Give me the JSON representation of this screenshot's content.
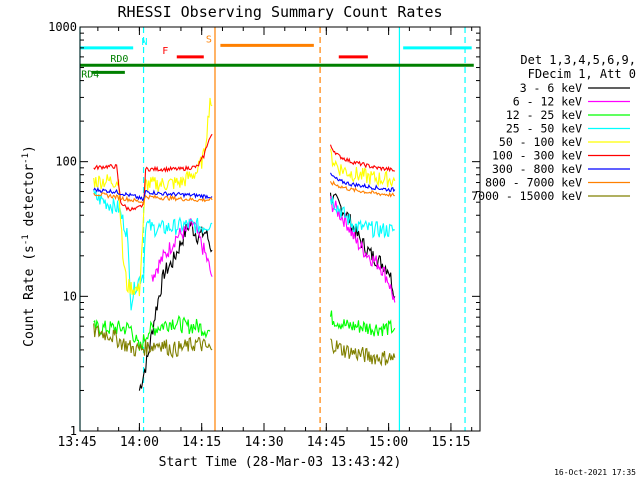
{
  "chart_data": {
    "type": "line",
    "title": "RHESSI Observing Summary Count Rates",
    "xlabel": "Start Time (28-Mar-03 13:43:42)",
    "ylabel": "Count Rate (s⁻¹ detector⁻¹)",
    "ylabel_base": "Count Rate (s",
    "ylabel_sup1": "-1",
    "ylabel_mid": " detector",
    "ylabel_sup2": "-1",
    "ylabel_end": ")",
    "y_scale": "log",
    "ylim": [
      1,
      1000
    ],
    "y_ticks": [
      {
        "value": 1,
        "label": "1"
      },
      {
        "value": 10,
        "label": "10"
      },
      {
        "value": 100,
        "label": "100"
      },
      {
        "value": 1000,
        "label": "1000"
      }
    ],
    "xlim_minutes": [
      825.7,
      922
    ],
    "x_ticks": [
      {
        "minute": 825,
        "label": "13:45"
      },
      {
        "minute": 840,
        "label": "14:00"
      },
      {
        "minute": 855,
        "label": "14:15"
      },
      {
        "minute": 870,
        "label": "14:30"
      },
      {
        "minute": 885,
        "label": "14:45"
      },
      {
        "minute": 900,
        "label": "15:00"
      },
      {
        "minute": 915,
        "label": "15:15"
      }
    ],
    "legend_title_1": "Det 1,3,4,5,6,9,",
    "legend_title_2": "FDecim 1, Att 0",
    "legend_placement": "right",
    "series": [
      {
        "name": "3 - 6 keV",
        "color": "#000000",
        "x": [
          840,
          842,
          844,
          846,
          848,
          850,
          852,
          854,
          856,
          857.5,
          886,
          888,
          890,
          892,
          894,
          896,
          898,
          900,
          901,
          901.5
        ],
        "y": [
          2,
          3.5,
          8,
          15,
          18,
          25,
          35,
          28,
          30,
          22,
          55,
          48,
          40,
          30,
          24,
          20,
          18,
          16,
          12,
          10
        ]
      },
      {
        "name": "6 - 12 keV",
        "color": "#ff00ff",
        "x": [
          843,
          845,
          847,
          849,
          851,
          853,
          855,
          856,
          857.5,
          886,
          888,
          890,
          892,
          894,
          896,
          898,
          900,
          901.5
        ],
        "y": [
          14,
          18,
          22,
          28,
          30,
          35,
          24,
          20,
          14,
          50,
          42,
          35,
          26,
          22,
          19,
          17,
          13,
          9
        ]
      },
      {
        "name": "12 - 25 keV",
        "color": "#00ff00",
        "x": [
          829,
          835,
          838,
          840,
          842,
          845,
          848,
          851,
          854,
          857,
          886,
          888,
          890,
          893,
          896,
          899,
          901.5
        ],
        "y": [
          5.8,
          5.8,
          5.8,
          4,
          5.5,
          6,
          6.5,
          6,
          6,
          5.5,
          7,
          6.5,
          6,
          6,
          5.8,
          5.8,
          5.8
        ]
      },
      {
        "name": "25 - 50 keV",
        "color": "#00ffff",
        "x": [
          829,
          831,
          833,
          835,
          837,
          838,
          839,
          841,
          841.5,
          843,
          846,
          849,
          852,
          855,
          857.5,
          886,
          888,
          890,
          892,
          895,
          898,
          901.5
        ],
        "y": [
          55,
          52,
          48,
          45,
          30,
          9,
          12,
          15,
          35,
          32,
          32,
          33,
          34,
          33,
          35,
          55,
          45,
          38,
          33,
          32,
          31,
          31
        ]
      },
      {
        "name": "50 - 100 keV",
        "color": "#ffff00",
        "x": [
          829,
          832,
          835,
          836,
          837,
          840,
          841.5,
          845,
          850,
          854,
          855.5,
          856.5,
          857,
          857.5,
          886,
          888,
          891,
          894,
          897,
          900,
          901.5
        ],
        "y": [
          72,
          72,
          72,
          20,
          12,
          11,
          68,
          68,
          70,
          85,
          110,
          200,
          300,
          260,
          110,
          90,
          82,
          78,
          75,
          74,
          72
        ]
      },
      {
        "name": "100 - 300 keV",
        "color": "#ff0000",
        "x": [
          829,
          832,
          834.5,
          835.5,
          837,
          839,
          841,
          841.5,
          845,
          850,
          854,
          855.5,
          856.5,
          857.5,
          886,
          888,
          891,
          894,
          897,
          900,
          901.5
        ],
        "y": [
          90,
          92,
          92,
          50,
          45,
          44,
          48,
          88,
          88,
          88,
          92,
          110,
          140,
          160,
          130,
          110,
          100,
          95,
          90,
          88,
          85
        ]
      },
      {
        "name": "300 - 800 keV",
        "color": "#0000ff",
        "x": [
          829,
          834,
          836,
          839,
          841,
          841.5,
          845,
          850,
          854,
          857.5,
          886,
          888,
          891,
          894,
          897,
          900,
          901.5
        ],
        "y": [
          62,
          60,
          58,
          55,
          52,
          60,
          58,
          57,
          56,
          55,
          80,
          72,
          68,
          66,
          64,
          62,
          62
        ]
      },
      {
        "name": "800 - 7000 keV",
        "color": "#ff8000",
        "x": [
          829,
          834,
          838,
          841,
          841.5,
          845,
          850,
          854,
          857.5,
          886,
          888,
          891,
          894,
          897,
          900,
          901.5
        ],
        "y": [
          58,
          55,
          52,
          50,
          55,
          54,
          53,
          52,
          52,
          70,
          66,
          62,
          60,
          58,
          57,
          56
        ]
      },
      {
        "name": "7000 - 15000 keV",
        "color": "#808000",
        "x": [
          829,
          833,
          836,
          839,
          842,
          845,
          848,
          851,
          854,
          857.5,
          886,
          889,
          892,
          895,
          898,
          901.5
        ],
        "y": [
          5.5,
          5.2,
          4.5,
          4,
          4.2,
          4.5,
          4,
          4.2,
          4.5,
          4,
          4.5,
          4,
          3.8,
          3.6,
          3.5,
          3.5
        ]
      }
    ],
    "flag_bars": [
      {
        "label": "N",
        "color": "#00ffff",
        "value": 700,
        "segments": [
          [
            825.7,
            838.5
          ],
          [
            903.5,
            920
          ]
        ],
        "label_at": 840.5
      },
      {
        "label": "F",
        "color": "#ff0000",
        "value": 600,
        "segments": [
          [
            849,
            855.5
          ],
          [
            888,
            895
          ]
        ],
        "label_at": 845.5
      },
      {
        "label": "S",
        "color": "#ff8000",
        "value": 730,
        "segments": [
          [
            859.5,
            882
          ]
        ],
        "label_at": 856
      },
      {
        "label": "RD0",
        "color": "#008000",
        "value": 520,
        "segments": [
          [
            825.7,
            920.5
          ]
        ],
        "label_at": 833
      },
      {
        "label": "RD4",
        "color": "#008000",
        "value": 460,
        "segments": [
          [
            828.5,
            836.5
          ]
        ],
        "label_at": 826
      }
    ],
    "vertical_markers": [
      {
        "minute": 825.7,
        "color": "#00ffff",
        "style": "solid"
      },
      {
        "minute": 841.0,
        "color": "#00ffff",
        "style": "dashed"
      },
      {
        "minute": 858.2,
        "color": "#ff8000",
        "style": "solid"
      },
      {
        "minute": 883.5,
        "color": "#ff8000",
        "style": "dashed"
      },
      {
        "minute": 902.6,
        "color": "#00ffff",
        "style": "solid"
      },
      {
        "minute": 918.4,
        "color": "#00ffff",
        "style": "dashed"
      }
    ],
    "footer_date": "16-Oct-2021 17:35"
  }
}
